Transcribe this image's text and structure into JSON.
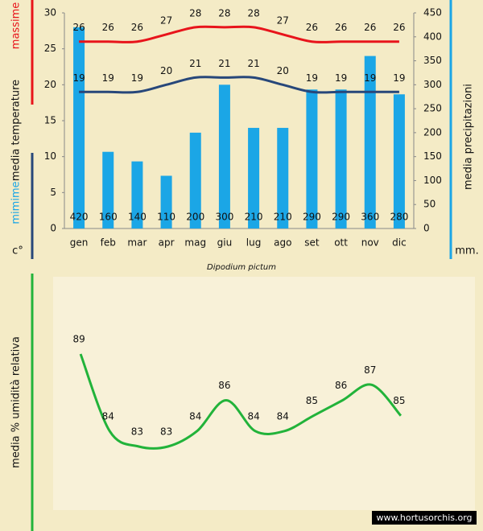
{
  "chart_data": [
    {
      "type": "combo",
      "title": "Dipodium pictum",
      "categories": [
        "gen",
        "feb",
        "mar",
        "apr",
        "mag",
        "giu",
        "lug",
        "ago",
        "set",
        "ott",
        "nov",
        "dic"
      ],
      "ylabel": "media  temperature",
      "yunit": "c°",
      "y2label": "media  precipitazioni",
      "y2unit": "mm.",
      "ylim": [
        0,
        30
      ],
      "yticks": [
        0,
        5,
        10,
        15,
        20,
        25,
        30
      ],
      "y2lim": [
        0,
        450
      ],
      "y2ticks": [
        0,
        50,
        100,
        150,
        200,
        250,
        300,
        350,
        400,
        450
      ],
      "series": [
        {
          "name": "massime",
          "color": "#e8141b",
          "values": [
            26,
            26,
            26,
            27,
            28,
            28,
            28,
            27,
            26,
            26,
            26,
            26
          ]
        },
        {
          "name": "mimime",
          "color": "#27477a",
          "values": [
            19,
            19,
            19,
            20,
            21,
            21,
            21,
            20,
            19,
            19,
            19,
            19
          ]
        },
        {
          "color": "#1ba6e6",
          "axis": "y2",
          "values": [
            420,
            160,
            140,
            110,
            200,
            300,
            210,
            210,
            290,
            290,
            360,
            280
          ]
        }
      ]
    },
    {
      "type": "line",
      "ylabel": "media %  umidità relativa",
      "color": "#22b33a",
      "values": [
        89,
        84,
        83,
        83,
        84,
        86,
        84,
        84,
        85,
        86,
        87,
        85
      ]
    }
  ],
  "watermark": "www.hortusorchis.org"
}
